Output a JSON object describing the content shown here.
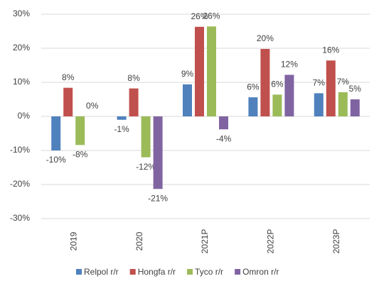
{
  "chart_data": {
    "type": "bar",
    "categories": [
      "2019",
      "2020",
      "2021P",
      "2022P",
      "2023P"
    ],
    "series": [
      {
        "name": "Relpol r/r",
        "color": "#4f81bd",
        "values": [
          -10,
          -1,
          9.4,
          5.6,
          6.8
        ],
        "value_labels": [
          "-10%",
          "-1%",
          "9%",
          "6%",
          "7%"
        ]
      },
      {
        "name": "Hongfa r/r",
        "color": "#c0504d",
        "values": [
          8.4,
          8.2,
          26.3,
          19.8,
          16.4
        ],
        "value_labels": [
          "8%",
          "8%",
          "26%",
          "20%",
          "16%"
        ]
      },
      {
        "name": "Tyco r/r",
        "color": "#9bbb59",
        "values": [
          -8.4,
          -12,
          26.4,
          6.4,
          7.1
        ],
        "value_labels": [
          "-8%",
          "-12%",
          "26%",
          "6%",
          "7%"
        ]
      },
      {
        "name": "Omron r/r",
        "color": "#8064a2",
        "values": [
          0,
          -21.3,
          -3.8,
          12.2,
          5
        ],
        "value_labels": [
          "0%",
          "-21%",
          "-4%",
          "12%",
          "5%"
        ]
      }
    ],
    "ylim": [
      -30,
      30
    ],
    "yticks": [
      {
        "value": -30,
        "label": "-30%"
      },
      {
        "value": -20,
        "label": "-20%"
      },
      {
        "value": -10,
        "label": "-10%"
      },
      {
        "value": 0,
        "label": "0%"
      },
      {
        "value": 10,
        "label": "10%"
      },
      {
        "value": 20,
        "label": "20%"
      },
      {
        "value": 30,
        "label": "30%"
      }
    ],
    "grid": true
  }
}
